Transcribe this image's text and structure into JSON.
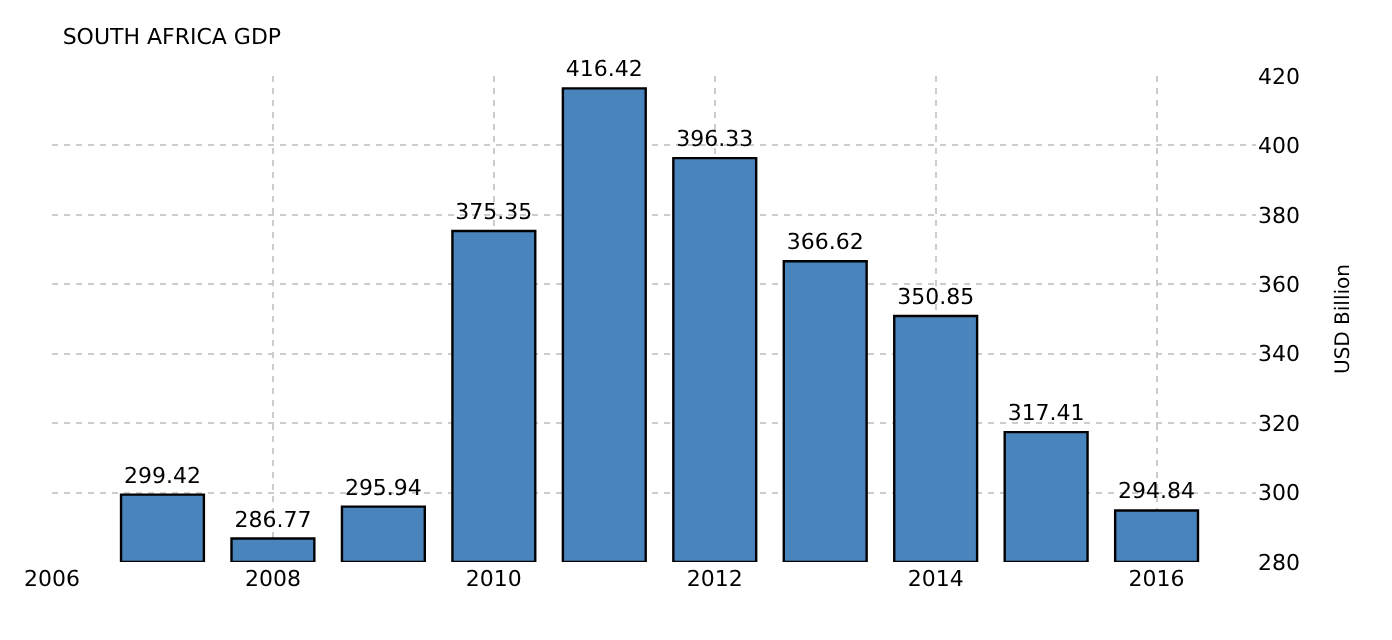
{
  "chart_data": {
    "type": "bar",
    "title": "SOUTH AFRICA GDP",
    "ylabel": "USD Billion",
    "x": [
      2007,
      2008,
      2009,
      2010,
      2011,
      2012,
      2013,
      2014,
      2015,
      2016
    ],
    "values": [
      299.42,
      286.77,
      295.94,
      375.35,
      416.42,
      396.33,
      366.62,
      350.85,
      317.41,
      294.84
    ],
    "color": "#4a84bd",
    "xlim": [
      2006,
      2016.9
    ],
    "xticks": [
      2006,
      2008,
      2010,
      2012,
      2014,
      2016
    ],
    "ylim": [
      280,
      420
    ],
    "yticks": [
      280,
      300,
      320,
      340,
      360,
      380,
      400,
      420
    ],
    "grid": true,
    "data_labels": true
  }
}
